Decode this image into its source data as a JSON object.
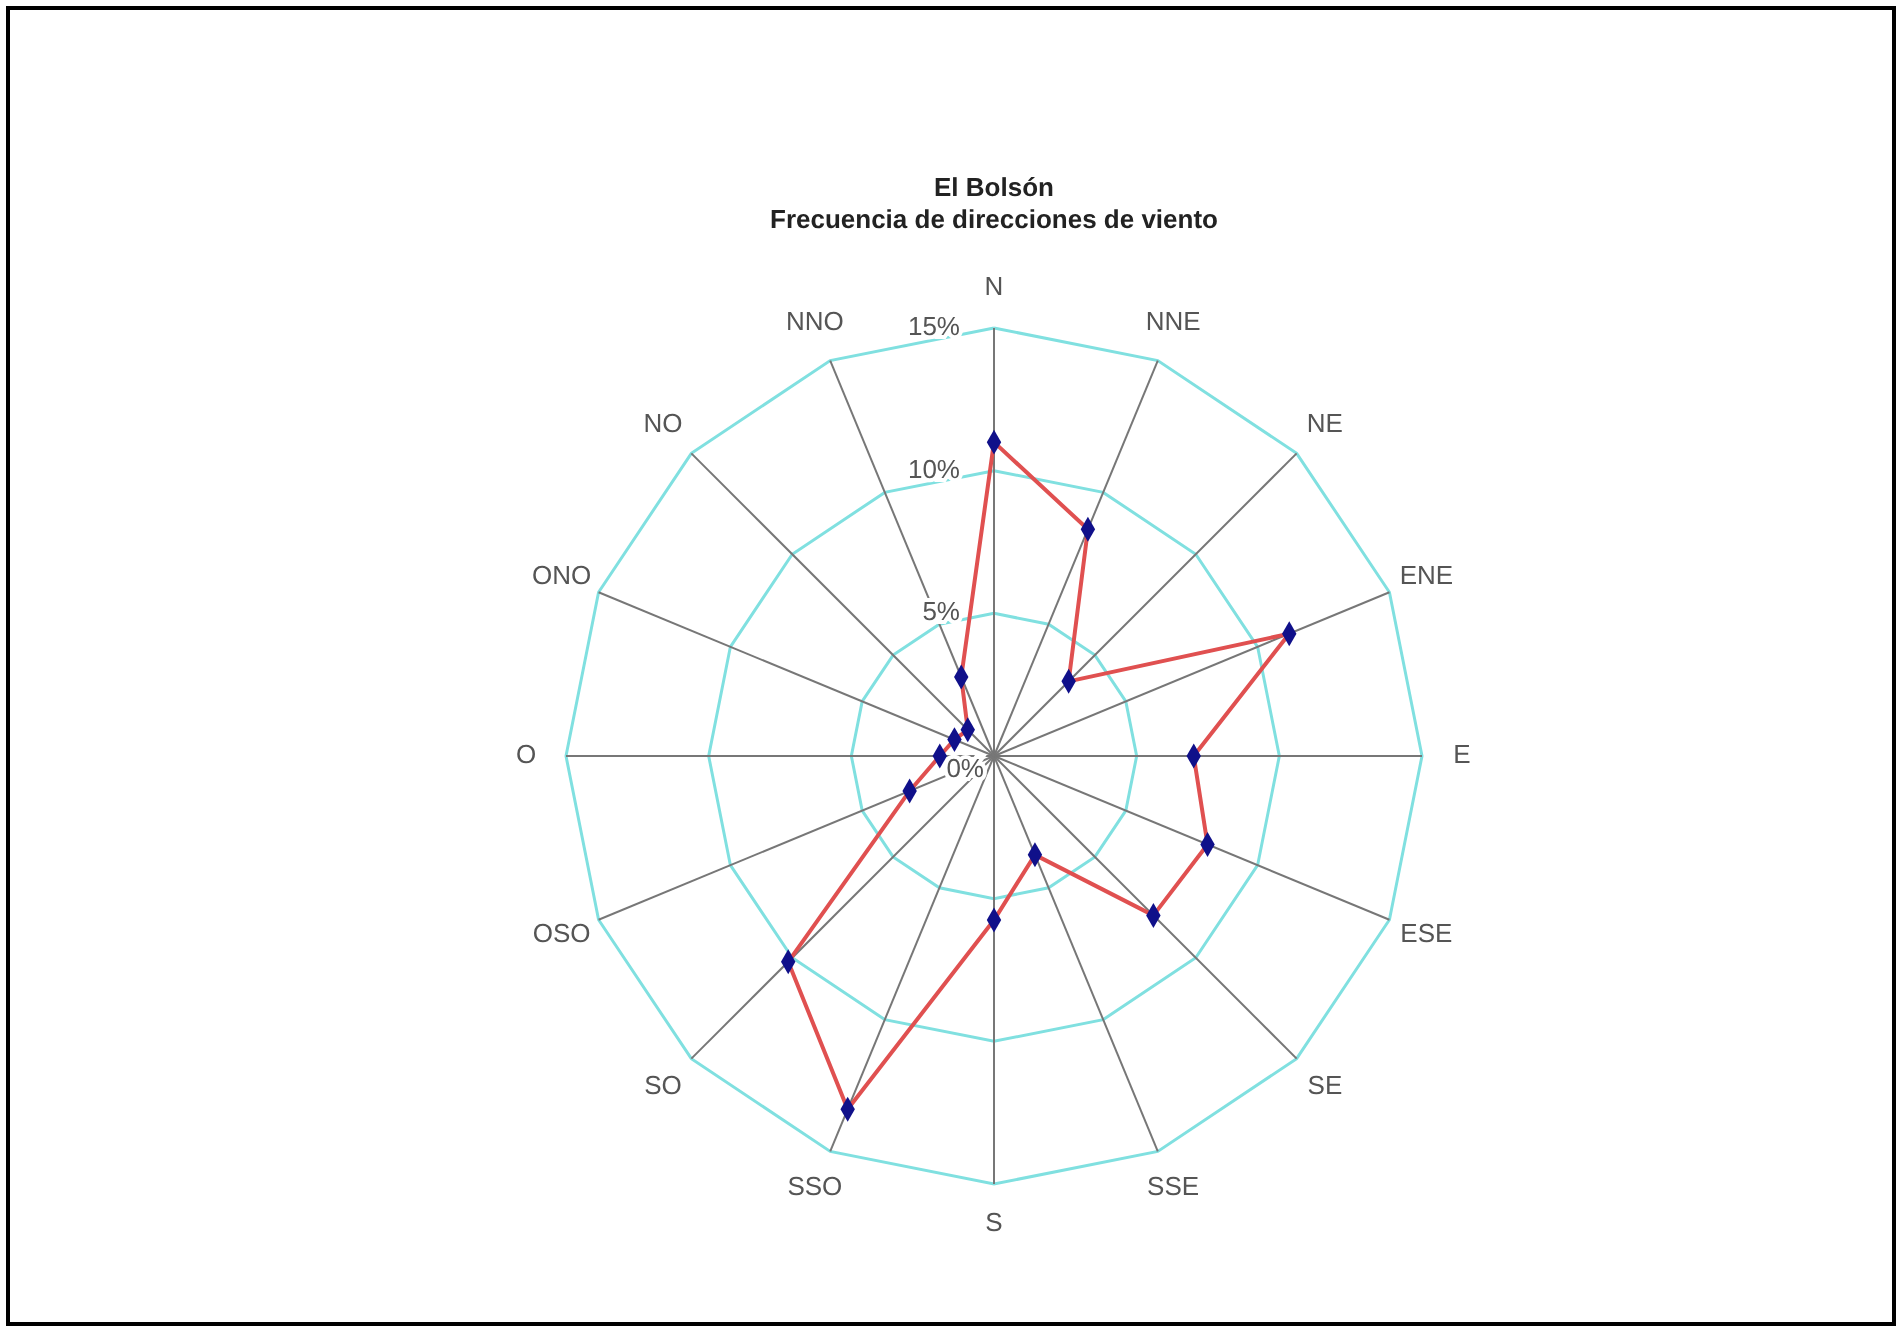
{
  "chart_data": {
    "type": "radar",
    "title": "El Bolsón",
    "subtitle": "Frecuencia de direcciones de viento",
    "categories": [
      "N",
      "NNE",
      "NE",
      "ENE",
      "E",
      "ESE",
      "SE",
      "SSE",
      "S",
      "SSO",
      "SO",
      "OSO",
      "O",
      "ONO",
      "NO",
      "NNO"
    ],
    "series": [
      {
        "color": "#e05050",
        "values": [
          11.0,
          8.6,
          3.7,
          11.2,
          7.0,
          8.1,
          7.9,
          3.75,
          5.75,
          13.4,
          10.2,
          3.2,
          1.9,
          1.5,
          1.3,
          3.0
        ]
      }
    ],
    "ylim": [
      0,
      15
    ],
    "yticks": [
      {
        "value": 0,
        "label": "0%"
      },
      {
        "value": 5,
        "label": "5%"
      },
      {
        "value": 10,
        "label": "10%"
      },
      {
        "value": 15,
        "label": "15%"
      }
    ],
    "grid": true,
    "marker": "diamond",
    "line_style": "solid"
  }
}
